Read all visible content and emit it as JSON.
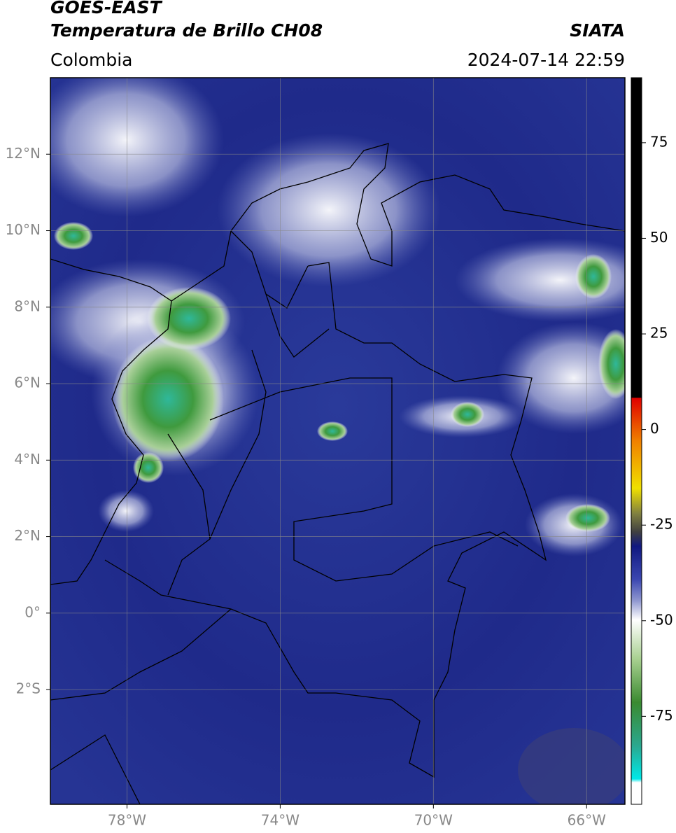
{
  "header": {
    "satellite": "GOES-EAST",
    "product": "Temperatura de Brillo CH08",
    "source": "SIATA",
    "region": "Colombia",
    "datetime": "2024-07-14 22:59"
  },
  "map": {
    "xlim": [
      -80,
      -65
    ],
    "ylim": [
      -5,
      14
    ],
    "xticks": [
      {
        "value": -78,
        "label": "78°W"
      },
      {
        "value": -74,
        "label": "74°W"
      },
      {
        "value": -70,
        "label": "70°W"
      },
      {
        "value": -66,
        "label": "66°W"
      }
    ],
    "yticks": [
      {
        "value": 12,
        "label": "12°N"
      },
      {
        "value": 10,
        "label": "10°N"
      },
      {
        "value": 8,
        "label": "8°N"
      },
      {
        "value": 6,
        "label": "6°N"
      },
      {
        "value": 4,
        "label": "4°N"
      },
      {
        "value": 2,
        "label": "2°N"
      },
      {
        "value": 0,
        "label": "0°"
      },
      {
        "value": -2,
        "label": "2°S"
      }
    ],
    "grid": true
  },
  "colorbar": {
    "lim": [
      -98,
      92
    ],
    "ticks": [
      75,
      50,
      25,
      0,
      -25,
      -50,
      -75
    ]
  }
}
